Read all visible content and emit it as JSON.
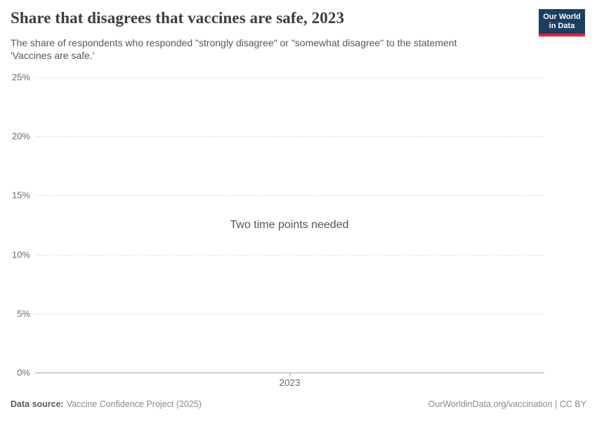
{
  "header": {
    "title": "Share that disagrees that vaccines are safe, 2023",
    "subtitle": "The share of respondents who responded \"strongly disagree\" or \"somewhat disagree\" to the statement 'Vaccines are safe.'",
    "logo": {
      "line1": "Our World",
      "line2": "in Data",
      "bg_color": "#1d3d63",
      "accent_color": "#e2263d"
    }
  },
  "chart_data": {
    "type": "line",
    "title": "Share that disagrees that vaccines are safe, 2023",
    "subtitle": "The share of respondents who responded \"strongly disagree\" or \"somewhat disagree\" to the statement 'Vaccines are safe.'",
    "series": [],
    "x_ticks": [
      "2023"
    ],
    "y_ticks": [
      0,
      5,
      10,
      15,
      20,
      25
    ],
    "y_tick_format": "{}%",
    "ylim": [
      0,
      25
    ],
    "grid": true,
    "gridline_color": "#dedede",
    "axis_color": "#a8a8a8",
    "legend_position": "none",
    "empty_state_message": "Two time points needed"
  },
  "footer": {
    "datasource_label": "Data source:",
    "datasource_value": "Vaccine Confidence Project (2025)",
    "rights": "OurWorldinData.org/vaccination | CC BY"
  }
}
